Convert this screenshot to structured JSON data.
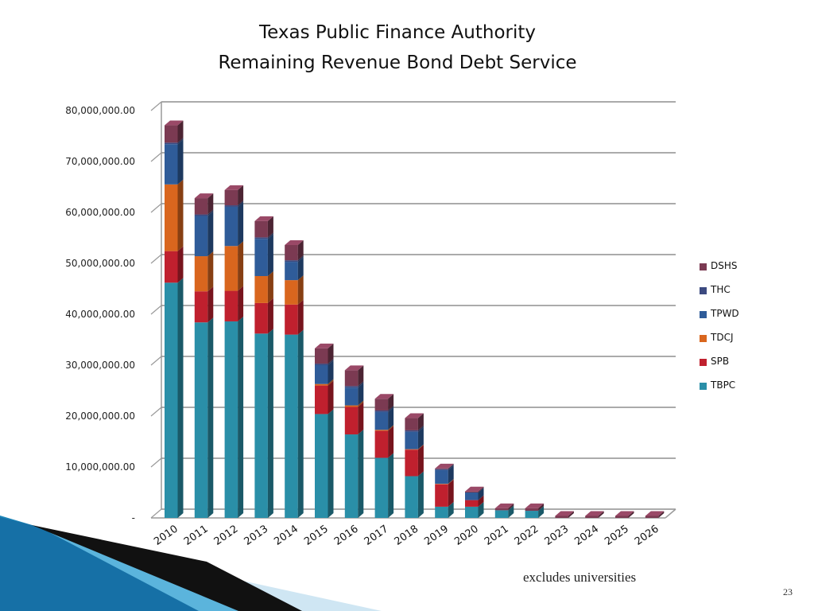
{
  "page": {
    "title_line1": "Texas Public Finance Authority",
    "title_line2": "Remaining Revenue Bond Debt Service",
    "footnote": "excludes universities",
    "page_number": "23"
  },
  "chart_data": {
    "type": "bar",
    "stacked": true,
    "three_d": true,
    "categories": [
      "2010",
      "2011",
      "2012",
      "2013",
      "2014",
      "2015",
      "2016",
      "2017",
      "2018",
      "2019",
      "2020",
      "2021",
      "2022",
      "2023",
      "2024",
      "2025",
      "2026"
    ],
    "series": [
      {
        "name": "TBPC",
        "color": "#2a8fa8",
        "values": [
          46200000,
          38400000,
          38600000,
          36200000,
          36000000,
          20400000,
          16400000,
          11800000,
          8200000,
          2200000,
          2200000,
          1500000,
          1400000,
          0,
          0,
          0,
          0
        ]
      },
      {
        "name": "SPB",
        "color": "#c0202e",
        "values": [
          6200000,
          6100000,
          6000000,
          6000000,
          5900000,
          5600000,
          5400000,
          5300000,
          5200000,
          4400000,
          1300000,
          0,
          0,
          0,
          0,
          0,
          0
        ]
      },
      {
        "name": "TDCJ",
        "color": "#d9661e",
        "values": [
          13100000,
          6900000,
          8800000,
          5300000,
          4800000,
          300000,
          300000,
          200000,
          100000,
          100000,
          0,
          0,
          0,
          0,
          0,
          0,
          0
        ]
      },
      {
        "name": "TPWD",
        "color": "#2f5c99",
        "values": [
          7900000,
          7900000,
          7700000,
          7300000,
          3600000,
          3700000,
          3500000,
          3500000,
          3400000,
          2700000,
          1500000,
          0,
          0,
          0,
          0,
          0,
          0
        ]
      },
      {
        "name": "THC",
        "color": "#3c4a80",
        "values": [
          300000,
          300000,
          300000,
          300000,
          300000,
          300000,
          300000,
          300000,
          300000,
          200000,
          0,
          0,
          0,
          0,
          0,
          0,
          0
        ]
      },
      {
        "name": "DSHS",
        "color": "#7b3a52",
        "values": [
          3400000,
          3200000,
          3000000,
          3200000,
          3000000,
          3000000,
          3100000,
          2300000,
          2400000,
          100000,
          200000,
          400000,
          500000,
          400000,
          400000,
          400000,
          400000
        ]
      }
    ],
    "y_ticks": [
      0,
      10000000,
      20000000,
      30000000,
      40000000,
      50000000,
      60000000,
      70000000,
      80000000
    ],
    "y_tick_labels": [
      "-",
      "10,000,000.00",
      "20,000,000.00",
      "30,000,000.00",
      "40,000,000.00",
      "50,000,000.00",
      "60,000,000.00",
      "70,000,000.00",
      "80,000,000.00"
    ],
    "ylim": [
      0,
      80000000
    ],
    "grid": true,
    "legend": "right",
    "xlabel": "",
    "ylabel": ""
  }
}
